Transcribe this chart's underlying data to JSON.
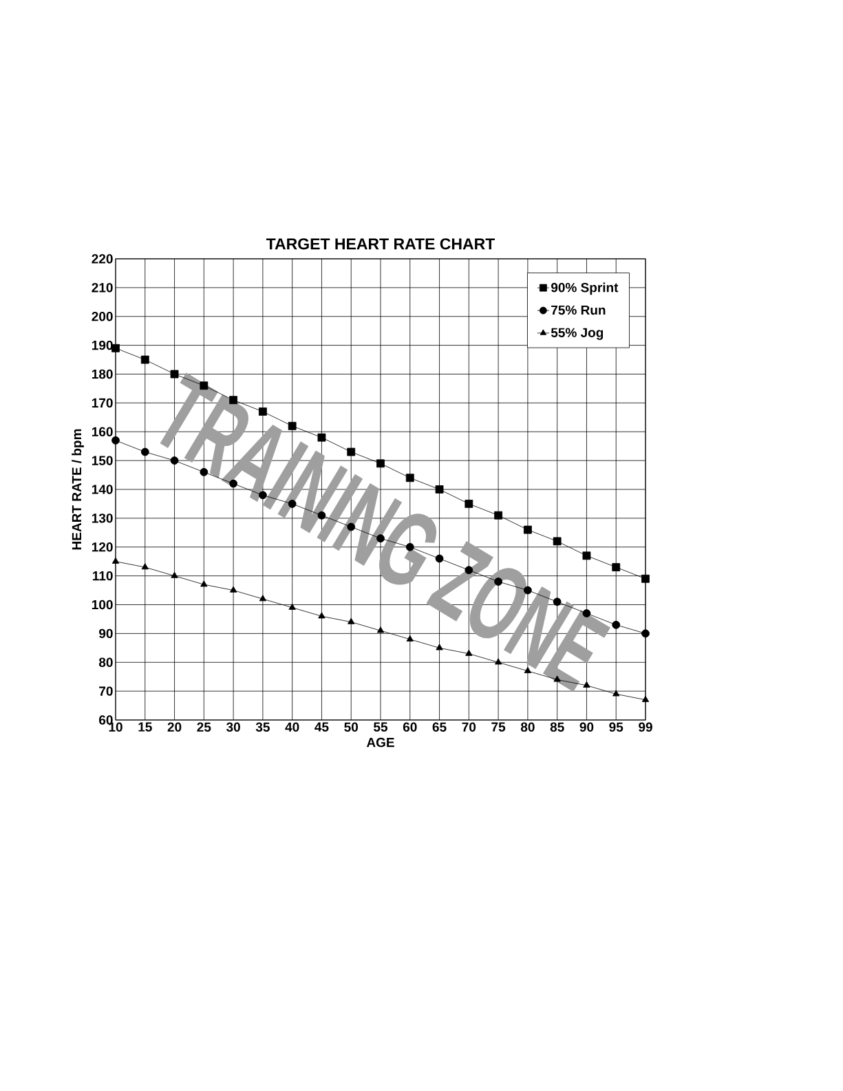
{
  "chart_data": {
    "type": "line",
    "title": "TARGET HEART RATE CHART",
    "xlabel": "AGE",
    "ylabel": "HEART RATE / bpm",
    "categories": [
      "10",
      "15",
      "20",
      "25",
      "30",
      "35",
      "40",
      "45",
      "50",
      "55",
      "60",
      "65",
      "70",
      "75",
      "80",
      "85",
      "90",
      "95",
      "99"
    ],
    "series": [
      {
        "name": "90% Sprint",
        "color": "#000000",
        "marker": "square",
        "values": [
          189,
          185,
          180,
          176,
          171,
          167,
          162,
          158,
          153,
          149,
          144,
          140,
          135,
          131,
          126,
          122,
          117,
          113,
          109
        ]
      },
      {
        "name": "75% Run",
        "color": "#000000",
        "marker": "circle",
        "values": [
          157,
          153,
          150,
          146,
          142,
          138,
          135,
          131,
          127,
          123,
          120,
          116,
          112,
          108,
          105,
          101,
          97,
          93,
          90
        ]
      },
      {
        "name": "55% Jog",
        "color": "#000000",
        "marker": "triangle",
        "values": [
          115,
          113,
          110,
          107,
          105,
          102,
          99,
          96,
          94,
          91,
          88,
          85,
          83,
          80,
          77,
          74,
          72,
          69,
          67
        ]
      }
    ],
    "ylim": [
      60,
      220
    ],
    "yticks": [
      60,
      70,
      80,
      90,
      100,
      110,
      120,
      130,
      140,
      150,
      160,
      170,
      180,
      190,
      200,
      210,
      220
    ],
    "grid": true,
    "legend": "top right",
    "line_style": "solid",
    "annotations": [
      "TRAINING ZONE"
    ]
  }
}
